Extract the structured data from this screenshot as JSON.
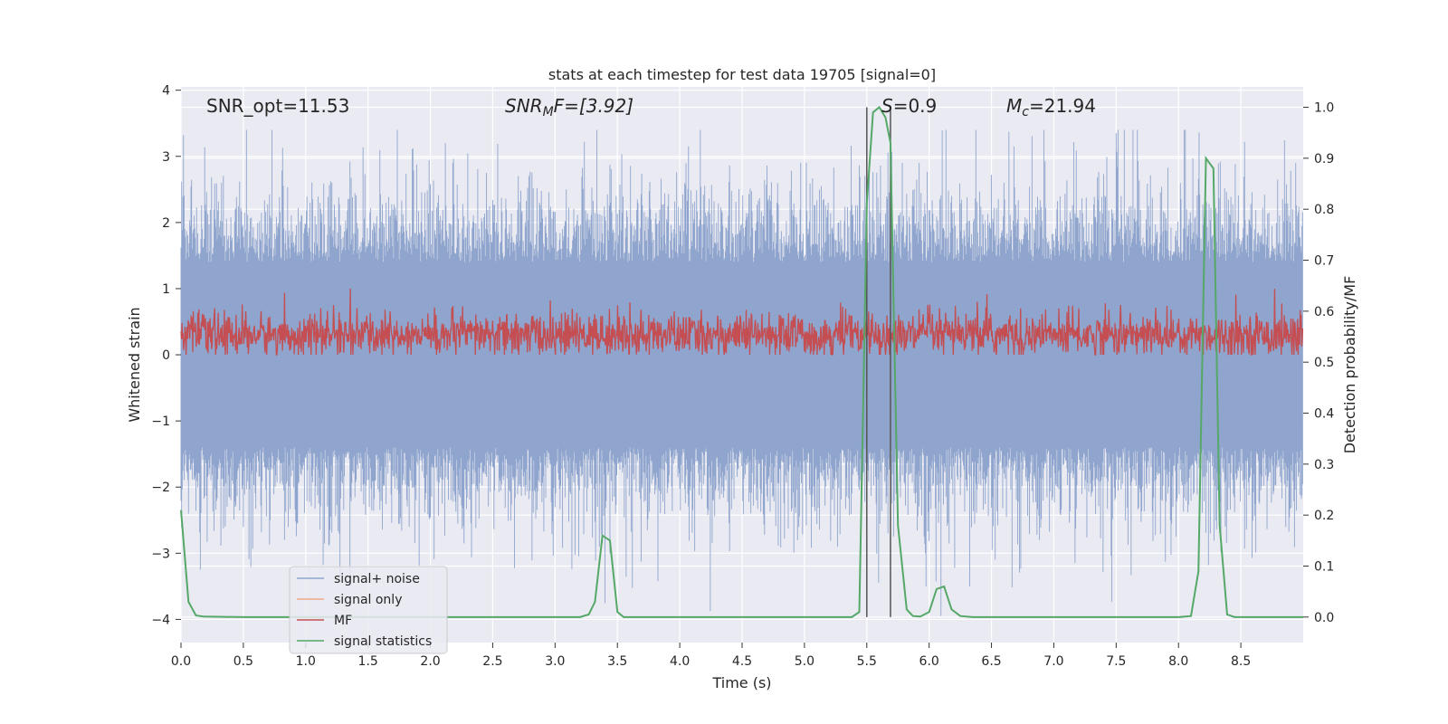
{
  "chart_data": {
    "type": "line",
    "title": "stats at each timestep for test data 19705 [signal=0]",
    "xlabel": "Time (s)",
    "ylabel_left": "Whitened strain",
    "ylabel_right": "Detection probability/MF",
    "xlim": [
      0.0,
      9.0
    ],
    "ylim_left": [
      -4.35,
      4.05
    ],
    "ylim_right": [
      -0.05,
      1.04
    ],
    "x_ticks": [
      "0.0",
      "0.5",
      "1.0",
      "1.5",
      "2.0",
      "2.5",
      "3.0",
      "3.5",
      "4.0",
      "4.5",
      "5.0",
      "5.5",
      "6.0",
      "6.5",
      "7.0",
      "7.5",
      "8.0",
      "8.5"
    ],
    "y_ticks_left": [
      "−4",
      "−3",
      "−2",
      "−1",
      "0",
      "1",
      "2",
      "3",
      "4"
    ],
    "y_ticks_right": [
      "0.0",
      "0.1",
      "0.2",
      "0.3",
      "0.4",
      "0.5",
      "0.6",
      "0.7",
      "0.8",
      "0.9",
      "1.0"
    ],
    "grid": true,
    "legend_position": "lower-left",
    "annotations": {
      "snr_opt": "SNR_opt=11.53",
      "snr_mf_main": "SNR",
      "snr_mf_sub": "M",
      "snr_mf_rest": "F=[3.92]",
      "s_main": "S",
      "s_rest": "=0.9",
      "mc_main": "M",
      "mc_sub": "c",
      "mc_rest": "=21.94"
    },
    "vlines": [
      5.5,
      5.69
    ],
    "series": [
      {
        "name": "signal+ noise",
        "color": "#8fa5cd",
        "axis": "left",
        "description_values": {
          "lower_envelope_mean": -1.75,
          "upper_envelope_mean": 1.75,
          "min": -4.0,
          "max": 3.4
        }
      },
      {
        "name": "signal only",
        "color": "#f0a98a",
        "axis": "left",
        "values": []
      },
      {
        "name": "MF",
        "color": "#c44e52",
        "axis": "left",
        "description_values": {
          "mean": 0.3,
          "min": 0.0,
          "max": 1.0
        }
      },
      {
        "name": "signal statistics",
        "color": "#55a868",
        "axis": "right",
        "x": [
          0.0,
          0.06,
          0.12,
          0.18,
          0.3,
          0.5,
          1.0,
          2.0,
          3.0,
          3.2,
          3.27,
          3.32,
          3.38,
          3.44,
          3.5,
          3.55,
          3.62,
          4.0,
          5.0,
          5.38,
          5.44,
          5.47,
          5.5,
          5.55,
          5.6,
          5.65,
          5.69,
          5.75,
          5.82,
          5.87,
          5.93,
          6.0,
          6.06,
          6.12,
          6.18,
          6.25,
          6.35,
          7.0,
          8.0,
          8.1,
          8.16,
          8.22,
          8.28,
          8.33,
          8.39,
          8.45,
          8.6,
          9.0
        ],
        "y": [
          0.21,
          0.03,
          0.003,
          0.001,
          0.0005,
          0.0,
          0.0,
          0.0,
          0.0,
          0.0,
          0.005,
          0.03,
          0.16,
          0.15,
          0.01,
          0.0,
          0.0,
          0.0,
          0.0,
          0.0,
          0.01,
          0.4,
          0.81,
          0.99,
          1.0,
          0.98,
          0.93,
          0.18,
          0.015,
          0.002,
          0.001,
          0.01,
          0.055,
          0.06,
          0.015,
          0.002,
          0.0,
          0.0,
          0.0,
          0.002,
          0.09,
          0.9,
          0.88,
          0.18,
          0.005,
          0.0,
          0.0,
          0.0
        ]
      }
    ]
  }
}
